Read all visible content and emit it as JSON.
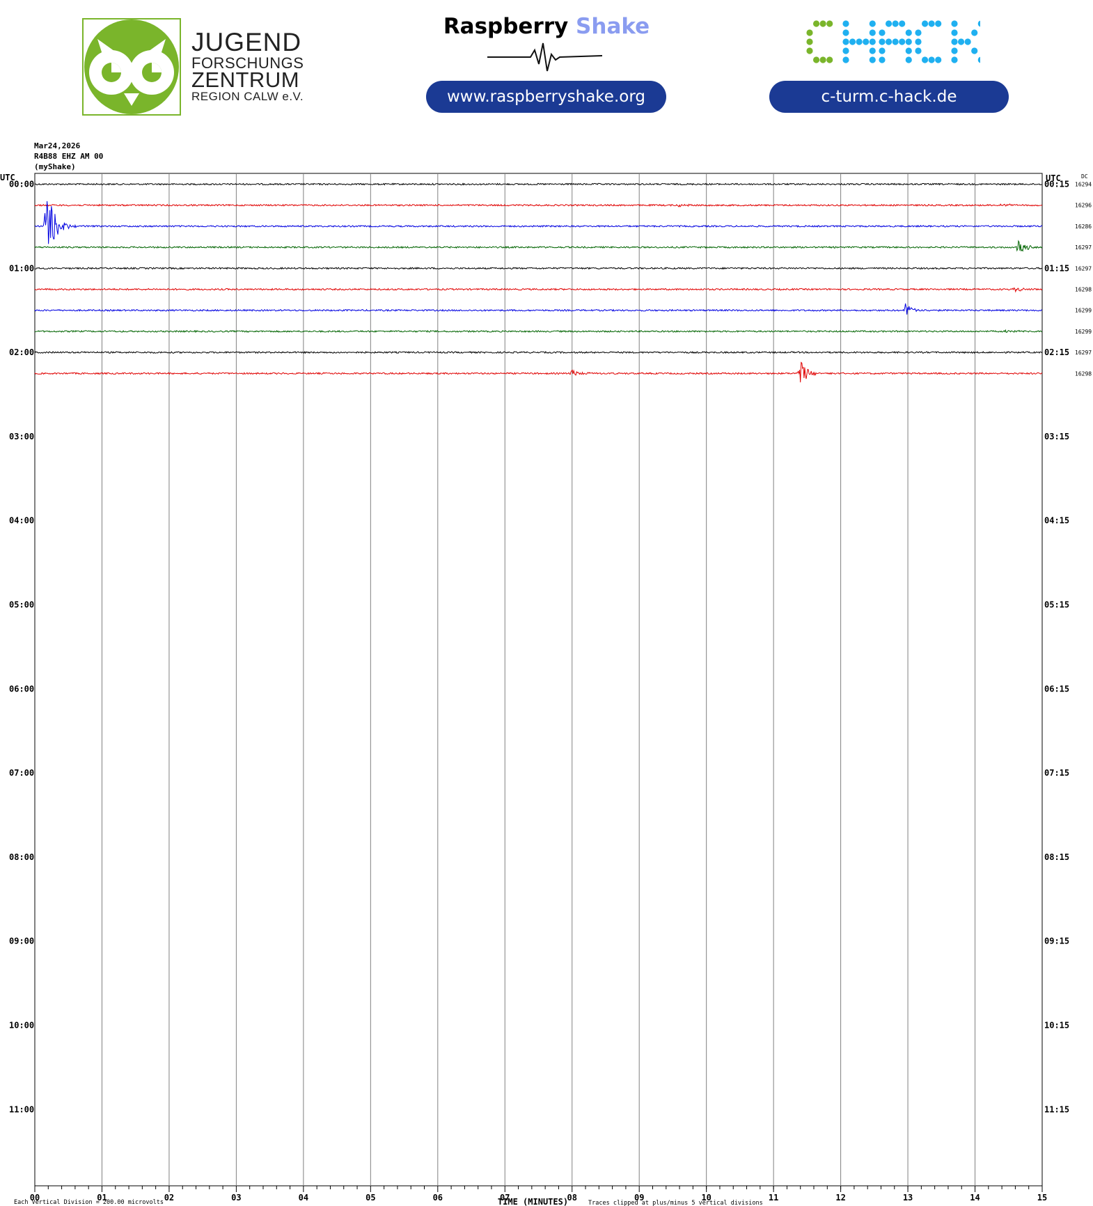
{
  "header": {
    "jfz": {
      "line1": "JUGEND",
      "line2": "FORSCHUNGS",
      "line3": "ZENTRUM",
      "line4": "REGION CALW e.V."
    },
    "rs": {
      "title_a": "Raspberry",
      "title_b": "Shake",
      "url": "www.raspberryshake.org"
    },
    "chack": {
      "url": "c-turm.c-hack.de"
    },
    "date": "Mar24,2026",
    "station": "R4B88 EHZ AM 00",
    "network": "(myShake)"
  },
  "colors": {
    "black": "#000000",
    "red": "#e00000",
    "blue": "#0000e0",
    "green": "#006400",
    "grid": "#808080",
    "jfz_green": "#7ab52b",
    "chack_green": "#7ab52b",
    "chack_blue": "#1fb0f0"
  },
  "chart_data": {
    "type": "line",
    "title": "",
    "xlabel": "TIME (MINUTES)",
    "ylabel": "",
    "left_corner_label": "UTC",
    "right_corner_label": "UTC",
    "dc_header": "DC",
    "x_ticks": [
      "00",
      "01",
      "02",
      "03",
      "04",
      "05",
      "06",
      "07",
      "08",
      "09",
      "10",
      "11",
      "12",
      "13",
      "14",
      "15"
    ],
    "xlim": [
      0,
      15
    ],
    "left_labels": [
      "00:00",
      "01:00",
      "02:00",
      "03:00",
      "04:00",
      "05:00",
      "06:00",
      "07:00",
      "08:00",
      "09:00",
      "10:00",
      "11:00"
    ],
    "right_labels": [
      "00:15",
      "01:15",
      "02:15",
      "03:15",
      "04:15",
      "05:15",
      "06:15",
      "07:15",
      "08:15",
      "09:15",
      "10:15",
      "11:15"
    ],
    "rows_per_hour": 4,
    "trace_color_cycle": [
      "black",
      "red",
      "blue",
      "green"
    ],
    "traces": [
      {
        "row": 0,
        "dc": "16294",
        "events": []
      },
      {
        "row": 1,
        "dc": "16296",
        "events": [
          {
            "minute": 9.6,
            "amp": 0.15
          },
          {
            "minute": 14.4,
            "amp": 0.15
          }
        ]
      },
      {
        "row": 2,
        "dc": "16286",
        "events": [
          {
            "minute": 0.18,
            "amp": 3.0
          }
        ]
      },
      {
        "row": 3,
        "dc": "16297",
        "events": [
          {
            "minute": 14.65,
            "amp": 0.6
          }
        ]
      },
      {
        "row": 4,
        "dc": "16297",
        "events": []
      },
      {
        "row": 5,
        "dc": "16298",
        "events": [
          {
            "minute": 14.6,
            "amp": 0.2
          }
        ]
      },
      {
        "row": 6,
        "dc": "16299",
        "events": [
          {
            "minute": 12.95,
            "amp": 0.6
          }
        ]
      },
      {
        "row": 7,
        "dc": "16299",
        "events": [
          {
            "minute": 14.45,
            "amp": 0.15
          }
        ]
      },
      {
        "row": 8,
        "dc": "16297",
        "events": []
      },
      {
        "row": 9,
        "dc": "16298",
        "events": [
          {
            "minute": 8.0,
            "amp": 0.35
          },
          {
            "minute": 11.4,
            "amp": 1.0
          }
        ]
      }
    ],
    "grid": true,
    "footer_left": "Each Vertical Division =  200.00 microvolts",
    "footer_right": "Traces clipped at plus/minus 5 vertical divisions"
  }
}
